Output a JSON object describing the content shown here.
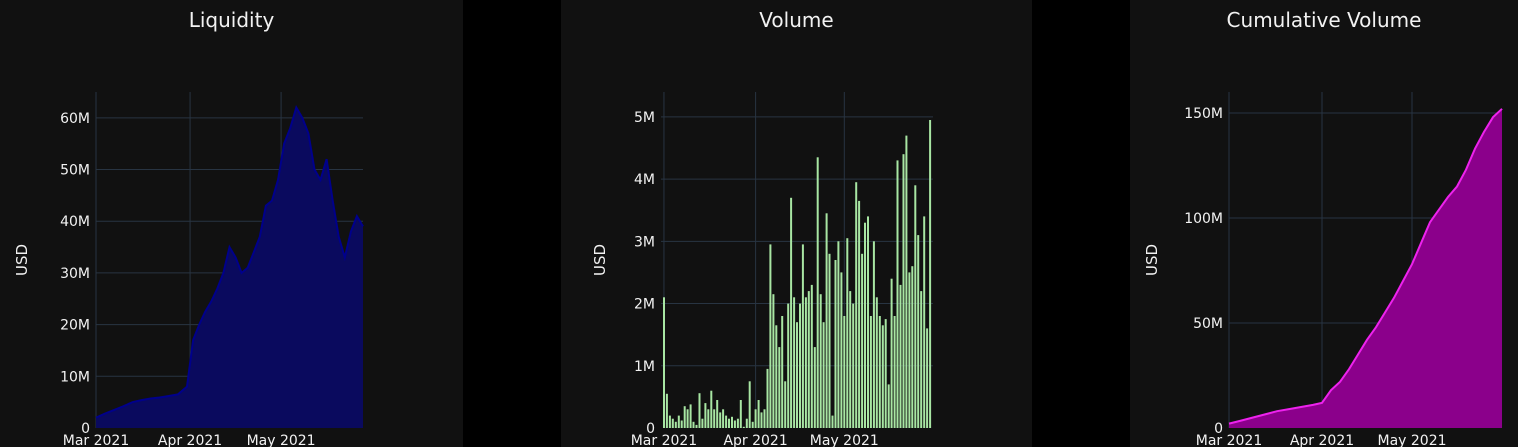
{
  "colors": {
    "page_background": "#000000",
    "panel_background": "#111111",
    "grid": "#283442",
    "text": "#f2f2f2",
    "liquidity_fill": "#0a0a5e",
    "liquidity_line": "#00008b",
    "volume_bar": "#a8e6a3",
    "cumulative_fill": "#8b008b",
    "cumulative_line": "#ee22ee"
  },
  "chart_data": [
    {
      "type": "area",
      "title": "Liquidity",
      "xlabel": "",
      "ylabel": "USD",
      "x_ticks": [
        "Mar 2021",
        "Apr 2021",
        "May 2021"
      ],
      "y_ticks": [
        "0",
        "10M",
        "20M",
        "30M",
        "40M",
        "50M",
        "60M"
      ],
      "ylim": [
        0,
        65000000
      ],
      "xlim": [
        "2021-03-01",
        "2021-05-28"
      ],
      "x": [
        "2021-03-01",
        "2021-03-04",
        "2021-03-07",
        "2021-03-10",
        "2021-03-13",
        "2021-03-16",
        "2021-03-19",
        "2021-03-22",
        "2021-03-25",
        "2021-03-28",
        "2021-03-31",
        "2021-04-02",
        "2021-04-04",
        "2021-04-06",
        "2021-04-08",
        "2021-04-10",
        "2021-04-12",
        "2021-04-14",
        "2021-04-16",
        "2021-04-18",
        "2021-04-20",
        "2021-04-22",
        "2021-04-24",
        "2021-04-26",
        "2021-04-28",
        "2021-04-30",
        "2021-05-02",
        "2021-05-04",
        "2021-05-06",
        "2021-05-08",
        "2021-05-10",
        "2021-05-12",
        "2021-05-14",
        "2021-05-16",
        "2021-05-18",
        "2021-05-20",
        "2021-05-22",
        "2021-05-24",
        "2021-05-26",
        "2021-05-28"
      ],
      "values": [
        2000000,
        2800000,
        3500000,
        4200000,
        5000000,
        5400000,
        5700000,
        5900000,
        6200000,
        6500000,
        8000000,
        17000000,
        20000000,
        22500000,
        24500000,
        27000000,
        30000000,
        35000000,
        33000000,
        30000000,
        31000000,
        34000000,
        37000000,
        43000000,
        44000000,
        48000000,
        55000000,
        58000000,
        62000000,
        60000000,
        57000000,
        50000000,
        48000000,
        52000000,
        44000000,
        37000000,
        33000000,
        38000000,
        41000000,
        39000000
      ]
    },
    {
      "type": "bar",
      "title": "Volume",
      "xlabel": "",
      "ylabel": "USD",
      "x_ticks": [
        "Mar 2021",
        "Apr 2021",
        "May 2021"
      ],
      "y_ticks": [
        "0",
        "1M",
        "2M",
        "3M",
        "4M",
        "5M"
      ],
      "ylim": [
        0,
        5400000
      ],
      "xlim": [
        "2021-02-28",
        "2021-05-31"
      ],
      "start_date": "2021-03-01",
      "values": [
        2100000,
        550000,
        200000,
        150000,
        100000,
        200000,
        120000,
        350000,
        300000,
        380000,
        100000,
        50000,
        560000,
        150000,
        400000,
        300000,
        600000,
        300000,
        450000,
        250000,
        300000,
        200000,
        150000,
        180000,
        120000,
        150000,
        450000,
        20000,
        150000,
        750000,
        100000,
        300000,
        450000,
        250000,
        300000,
        950000,
        2950000,
        2150000,
        1650000,
        1300000,
        1800000,
        750000,
        2000000,
        3700000,
        2100000,
        1700000,
        2000000,
        2950000,
        2100000,
        2200000,
        2300000,
        1300000,
        4350000,
        2150000,
        1700000,
        3450000,
        2800000,
        200000,
        2700000,
        3000000,
        2500000,
        1800000,
        3050000,
        2200000,
        2000000,
        3950000,
        3650000,
        2800000,
        3300000,
        3400000,
        1800000,
        3000000,
        2100000,
        1800000,
        1650000,
        1750000,
        700000,
        2400000,
        1800000,
        4300000,
        2300000,
        4400000,
        4700000,
        2500000,
        2600000,
        3900000,
        3100000,
        2200000,
        3400000,
        1600000,
        4950000
      ]
    },
    {
      "type": "area",
      "title": "Cumulative Volume",
      "xlabel": "",
      "ylabel": "USD",
      "x_ticks": [
        "Mar 2021",
        "Apr 2021",
        "May 2021"
      ],
      "y_ticks": [
        "0",
        "50M",
        "100M",
        "150M"
      ],
      "ylim": [
        0,
        160000000
      ],
      "xlim": [
        "2021-03-01",
        "2021-05-31"
      ],
      "x": [
        "2021-03-01",
        "2021-03-05",
        "2021-03-09",
        "2021-03-13",
        "2021-03-17",
        "2021-03-21",
        "2021-03-25",
        "2021-03-29",
        "2021-04-01",
        "2021-04-04",
        "2021-04-07",
        "2021-04-10",
        "2021-04-13",
        "2021-04-16",
        "2021-04-19",
        "2021-04-22",
        "2021-04-25",
        "2021-04-28",
        "2021-05-01",
        "2021-05-04",
        "2021-05-07",
        "2021-05-10",
        "2021-05-13",
        "2021-05-16",
        "2021-05-19",
        "2021-05-22",
        "2021-05-25",
        "2021-05-28",
        "2021-05-31"
      ],
      "values": [
        2100000,
        3500000,
        5000000,
        6500000,
        8000000,
        9000000,
        10000000,
        11000000,
        12000000,
        18000000,
        22000000,
        28000000,
        35000000,
        42000000,
        48000000,
        55000000,
        62000000,
        70000000,
        78000000,
        88000000,
        98000000,
        104000000,
        110000000,
        115000000,
        123000000,
        133000000,
        141000000,
        148000000,
        152000000
      ]
    }
  ]
}
